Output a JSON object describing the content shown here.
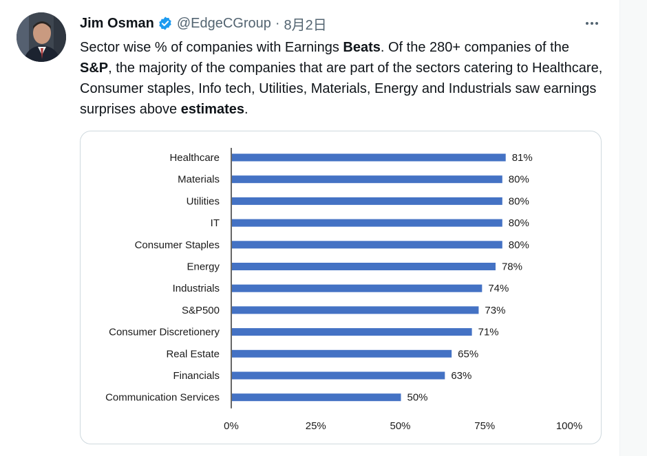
{
  "tweet": {
    "author_name": "Jim Osman",
    "handle": "@EdgeCGroup",
    "separator": "·",
    "date": "8月2日",
    "body": [
      {
        "t": "Sector wise % of companies with Earnings ",
        "b": false
      },
      {
        "t": "Beats",
        "b": true
      },
      {
        "t": ". Of the 280+ companies of the ",
        "b": false
      },
      {
        "t": "S&P",
        "b": true
      },
      {
        "t": ", the majority of the companies that are part of the sectors catering to Healthcare, Consumer staples, Info tech, Utilities, Materials, Energy and Industrials saw earnings surprises above ",
        "b": false
      },
      {
        "t": "estimates",
        "b": true
      },
      {
        "t": ".",
        "b": false
      }
    ],
    "icons": {
      "verified": "verified-badge-icon",
      "more": "more-options-icon"
    },
    "colors": {
      "verified": "#1d9bf0",
      "bar": "#4472c4"
    }
  },
  "chart_data": {
    "type": "bar",
    "orientation": "horizontal",
    "categories": [
      "Healthcare",
      "Materials",
      "Utilities",
      "IT",
      "Consumer Staples",
      "Energy",
      "Industrials",
      "S&P500",
      "Consumer Discretionery",
      "Real Estate",
      "Financials",
      "Communication Services"
    ],
    "values": [
      81,
      80,
      80,
      80,
      80,
      78,
      74,
      73,
      71,
      65,
      63,
      50
    ],
    "value_labels": [
      "81%",
      "80%",
      "80%",
      "80%",
      "80%",
      "78%",
      "74%",
      "73%",
      "71%",
      "65%",
      "63%",
      "50%"
    ],
    "x_ticks": [
      "0%",
      "25%",
      "50%",
      "75%",
      "100%"
    ],
    "x_tick_values": [
      0,
      25,
      50,
      75,
      100
    ],
    "xlim": [
      0,
      100
    ],
    "title": "",
    "xlabel": "",
    "ylabel": "",
    "grid": false
  }
}
